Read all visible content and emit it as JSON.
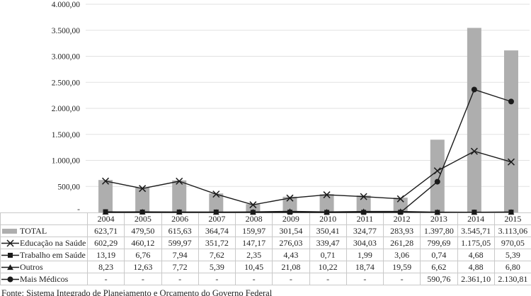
{
  "colors": {
    "bar": "#aeaeae",
    "line": "#1a1a1a",
    "grid": "#e2e2e2",
    "table_border": "#c9c9c9",
    "text": "#1f1f1f"
  },
  "chart_data": {
    "type": "combo-bar-line",
    "title": "",
    "xlabel": "",
    "ylabel": "",
    "categories": [
      "2004",
      "2005",
      "2006",
      "2007",
      "2008",
      "2009",
      "2010",
      "2011",
      "2012",
      "2013",
      "2014",
      "2015"
    ],
    "ylim": [
      0,
      4000
    ],
    "ytick_step": 500,
    "ytick_labels": [
      "-",
      "500,00",
      "1.000,00",
      "1.500,00",
      "2.000,00",
      "2.500,00",
      "3.000,00",
      "3.500,00",
      "4.000,00"
    ],
    "grid": "horizontal",
    "legend_position": "table-left",
    "series": [
      {
        "name": "TOTAL",
        "type": "bar",
        "marker": "bar",
        "values": [
          623.71,
          479.5,
          615.63,
          364.74,
          159.97,
          301.54,
          350.41,
          324.77,
          283.93,
          1397.8,
          3545.71,
          3113.06
        ]
      },
      {
        "name": "Educação na Saúde",
        "type": "line",
        "marker": "x",
        "values": [
          602.29,
          460.12,
          599.97,
          351.72,
          147.17,
          276.03,
          339.47,
          304.03,
          261.28,
          799.69,
          1175.05,
          970.05
        ]
      },
      {
        "name": "Trabalho em Saúde",
        "type": "line",
        "marker": "square",
        "values": [
          13.19,
          6.76,
          7.94,
          7.62,
          2.35,
          4.43,
          0.71,
          1.99,
          3.06,
          0.74,
          4.68,
          5.39
        ]
      },
      {
        "name": "Outros",
        "type": "line",
        "marker": "triangle",
        "values": [
          8.23,
          12.63,
          7.72,
          5.39,
          10.45,
          21.08,
          10.22,
          18.74,
          19.59,
          6.62,
          4.88,
          6.8
        ]
      },
      {
        "name": "Mais Médicos",
        "type": "line",
        "marker": "circle",
        "values": [
          null,
          null,
          null,
          null,
          null,
          null,
          null,
          null,
          null,
          590.76,
          2361.1,
          2130.81
        ]
      }
    ]
  },
  "table": {
    "header": [
      "",
      "2004",
      "2005",
      "2006",
      "2007",
      "2008",
      "2009",
      "2010",
      "2011",
      "2012",
      "2013",
      "2014",
      "2015"
    ],
    "rows": [
      {
        "label": "TOTAL",
        "marker": "bar",
        "cells": [
          "623,71",
          "479,50",
          "615,63",
          "364,74",
          "159,97",
          "301,54",
          "350,41",
          "324,77",
          "283,93",
          "1.397,80",
          "3.545,71",
          "3.113,06"
        ]
      },
      {
        "label": "Educação na Saúde",
        "marker": "x",
        "cells": [
          "602,29",
          "460,12",
          "599,97",
          "351,72",
          "147,17",
          "276,03",
          "339,47",
          "304,03",
          "261,28",
          "799,69",
          "1.175,05",
          "970,05"
        ]
      },
      {
        "label": "Trabalho em Saúde",
        "marker": "square",
        "cells": [
          "13,19",
          "6,76",
          "7,94",
          "7,62",
          "2,35",
          "4,43",
          "0,71",
          "1,99",
          "3,06",
          "0,74",
          "4,68",
          "5,39"
        ]
      },
      {
        "label": "Outros",
        "marker": "triangle",
        "cells": [
          "8,23",
          "12,63",
          "7,72",
          "5,39",
          "10,45",
          "21,08",
          "10,22",
          "18,74",
          "19,59",
          "6,62",
          "4,88",
          "6,80"
        ]
      },
      {
        "label": "Mais Médicos",
        "marker": "circle",
        "cells": [
          "-",
          "-",
          "-",
          "-",
          "-",
          "-",
          "-",
          "-",
          "-",
          "590,76",
          "2.361,10",
          "2.130,81"
        ]
      }
    ]
  },
  "caption": "Fonte: Sistema Integrado de Planejamento e Orçamento do Governo Federal"
}
